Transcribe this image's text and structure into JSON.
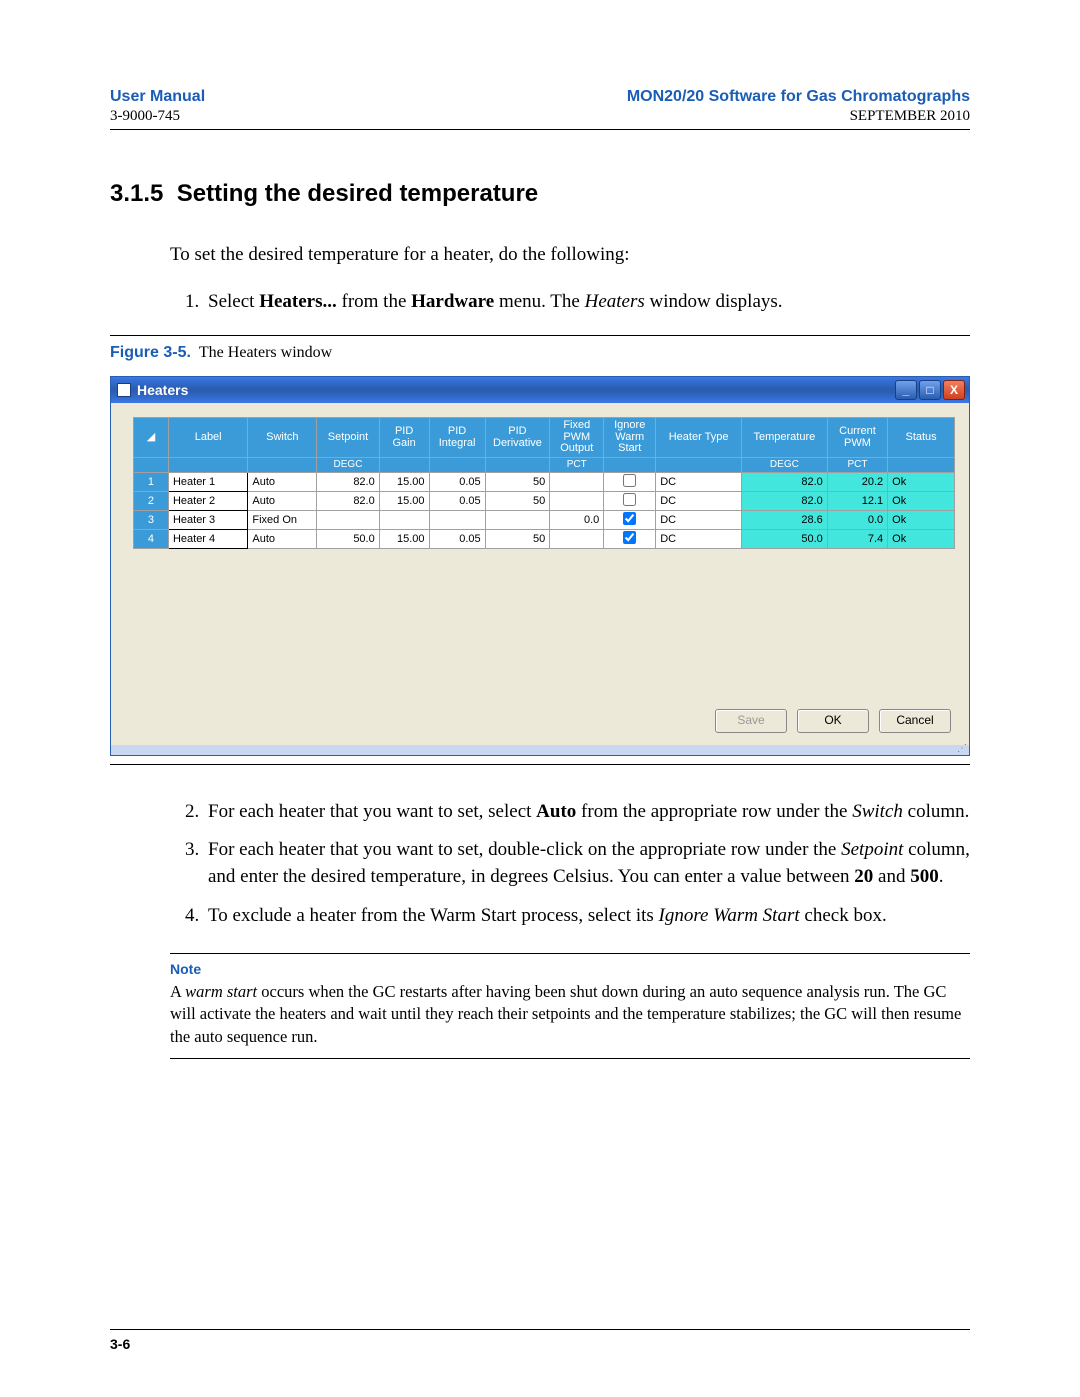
{
  "header": {
    "left_title": "User Manual",
    "right_title": "MON20/20 Software for Gas Chromatographs",
    "left_sub": "3-9000-745",
    "right_sub": "SEPTEMBER 2010"
  },
  "section": {
    "number": "3.1.5",
    "title": "Setting the desired temperature",
    "intro": "To set the desired temperature for a heater, do the following:",
    "step1_pre": "Select ",
    "step1_b1": "Heaters...",
    "step1_mid": " from the ",
    "step1_b2": "Hardware",
    "step1_mid2": " menu.  The ",
    "step1_i1": "Heaters",
    "step1_post": " window displays."
  },
  "figure": {
    "label": "Figure 3-5.",
    "caption": "The Heaters window"
  },
  "window": {
    "title": "Heaters",
    "columns": [
      "Label",
      "Switch",
      "Setpoint",
      "PID Gain",
      "PID Integral",
      "PID Derivative",
      "Fixed PWM Output",
      "Ignore Warm Start",
      "Heater Type",
      "Temperature",
      "Current PWM",
      "Status"
    ],
    "unit_row": {
      "Setpoint": "DEGC",
      "Fixed PWM Output": "PCT",
      "Temperature": "DEGC",
      "Current PWM": "PCT"
    },
    "rows": [
      {
        "n": "1",
        "label": "Heater 1",
        "switch": "Auto",
        "setpoint": "82.0",
        "gain": "15.00",
        "integral": "0.05",
        "deriv": "50",
        "fixed": "",
        "ignore": false,
        "htype": "DC",
        "temp": "82.0",
        "pwm": "20.2",
        "status": "Ok"
      },
      {
        "n": "2",
        "label": "Heater 2",
        "switch": "Auto",
        "setpoint": "82.0",
        "gain": "15.00",
        "integral": "0.05",
        "deriv": "50",
        "fixed": "",
        "ignore": false,
        "htype": "DC",
        "temp": "82.0",
        "pwm": "12.1",
        "status": "Ok"
      },
      {
        "n": "3",
        "label": "Heater 3",
        "switch": "Fixed On",
        "setpoint": "",
        "gain": "",
        "integral": "",
        "deriv": "",
        "fixed": "0.0",
        "ignore": true,
        "htype": "DC",
        "temp": "28.6",
        "pwm": "0.0",
        "status": "Ok"
      },
      {
        "n": "4",
        "label": "Heater 4",
        "switch": "Auto",
        "setpoint": "50.0",
        "gain": "15.00",
        "integral": "0.05",
        "deriv": "50",
        "fixed": "",
        "ignore": true,
        "htype": "DC",
        "temp": "50.0",
        "pwm": "7.4",
        "status": "Ok"
      }
    ],
    "buttons": {
      "save": "Save",
      "ok": "OK",
      "cancel": "Cancel"
    }
  },
  "steps2to4": {
    "s2a": "For each heater that you want to set, select ",
    "s2b": "Auto",
    "s2c": " from the appropriate row under the ",
    "s2d": "Switch",
    "s2e": " column.",
    "s3a": "For each heater that you want to set, double-click on the appropriate row under the ",
    "s3b": "Setpoint",
    "s3c": " column, and enter the desired temperature, in degrees Celsius.  You can enter a value between ",
    "s3d": "20",
    "s3e": " and ",
    "s3f": "500",
    "s3g": ".",
    "s4a": "To exclude a heater from the Warm Start process, select its ",
    "s4b": "Ignore Warm Start",
    "s4c": " check box."
  },
  "note": {
    "label": "Note",
    "t1": "A ",
    "t2": "warm start",
    "t3": " occurs when the GC restarts after having been shut down during an auto sequence analysis run.  The GC will activate the heaters and wait until they reach their setpoints and the temperature stabilizes; the GC will then resume the auto sequence run."
  },
  "footer": {
    "page": "3-6"
  },
  "style": {
    "accent_color": "#1a5db6",
    "titlebar_color": "#2a5db0",
    "header_cell_color": "#3b9bd8",
    "readout_color": "#42e6dd",
    "window_bg": "#ece9d8"
  }
}
